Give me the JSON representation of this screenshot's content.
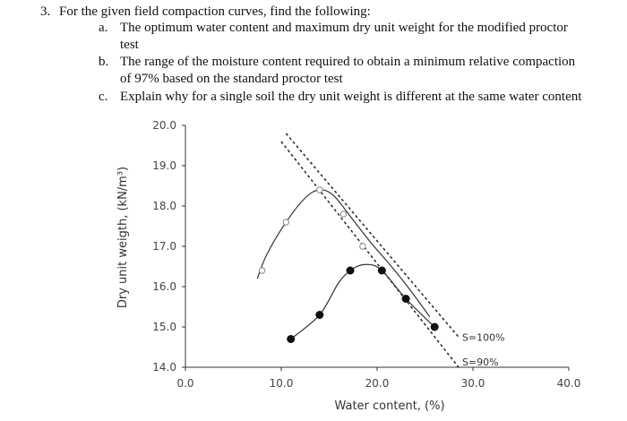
{
  "question": {
    "number": "3.",
    "stem": "For the given field compaction curves, find the following:",
    "parts": [
      {
        "label": "a.",
        "line1": "The optimum water content and maximum dry unit weight for the modified proctor",
        "line2": "test"
      },
      {
        "label": "b.",
        "line1": "The range of the moisture content required to obtain a minimum relative compaction",
        "line2": "of 97% based on the standard proctor test"
      },
      {
        "label": "c.",
        "line1": "Explain why for a single soil the dry unit weight is different at the same water content",
        "line2": ""
      }
    ]
  },
  "chart_data": {
    "type": "line",
    "xlabel": "Water content, (%)",
    "ylabel": "Dry unit weigth, (kN/m³)",
    "xlim": [
      0,
      40
    ],
    "ylim": [
      14,
      20
    ],
    "x_ticks": [
      "0.0",
      "10.0",
      "20.0",
      "30.0",
      "40.0"
    ],
    "y_ticks": [
      "14.0",
      "15.0",
      "16.0",
      "17.0",
      "18.0",
      "19.0",
      "20.0"
    ],
    "grid": false,
    "series": [
      {
        "marker": "open-circle",
        "points": [
          [
            8.0,
            16.4
          ],
          [
            10.5,
            17.6
          ],
          [
            14.0,
            18.4
          ],
          [
            16.5,
            17.8
          ],
          [
            18.5,
            17.0
          ]
        ],
        "curve": [
          [
            7.5,
            16.2
          ],
          [
            8.5,
            16.8
          ],
          [
            10.5,
            17.6
          ],
          [
            12.5,
            18.2
          ],
          [
            14.0,
            18.4
          ],
          [
            15.5,
            18.25
          ],
          [
            17.5,
            17.65
          ],
          [
            19.5,
            17.05
          ],
          [
            21.5,
            16.5
          ],
          [
            23.5,
            15.9
          ],
          [
            25.5,
            15.25
          ]
        ]
      },
      {
        "marker": "filled-circle",
        "points": [
          [
            11.0,
            14.7
          ],
          [
            14.0,
            15.3
          ],
          [
            17.2,
            16.4
          ],
          [
            20.5,
            16.4
          ],
          [
            23.0,
            15.7
          ],
          [
            26.0,
            15.0
          ]
        ],
        "curve": [
          [
            11.0,
            14.7
          ],
          [
            14.0,
            15.3
          ],
          [
            16.0,
            16.1
          ],
          [
            17.5,
            16.45
          ],
          [
            19.0,
            16.55
          ],
          [
            20.5,
            16.4
          ],
          [
            23.0,
            15.7
          ],
          [
            26.0,
            15.0
          ]
        ]
      }
    ],
    "saturation_lines": [
      {
        "label": "S=100%",
        "points": [
          [
            10.5,
            19.8
          ],
          [
            28.5,
            14.75
          ]
        ]
      },
      {
        "label": "S=90%",
        "points": [
          [
            10.0,
            19.6
          ],
          [
            28.5,
            14.0
          ]
        ]
      }
    ]
  }
}
